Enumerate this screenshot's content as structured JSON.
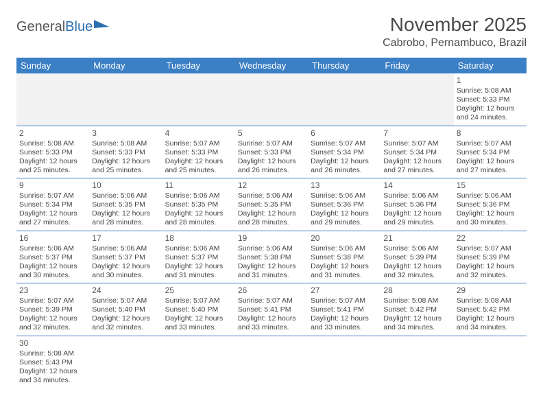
{
  "brand": {
    "part1": "General",
    "part2": "Blue"
  },
  "title": "November 2025",
  "location": "Cabrobo, Pernambuco, Brazil",
  "colors": {
    "header_bg": "#3b7fc4",
    "header_fg": "#ffffff",
    "border": "#3b7fc4",
    "text": "#444444",
    "empty_bg": "#f2f2f2"
  },
  "day_headers": [
    "Sunday",
    "Monday",
    "Tuesday",
    "Wednesday",
    "Thursday",
    "Friday",
    "Saturday"
  ],
  "weeks": [
    [
      null,
      null,
      null,
      null,
      null,
      null,
      {
        "n": "1",
        "sr": "Sunrise: 5:08 AM",
        "ss": "Sunset: 5:33 PM",
        "dl": "Daylight: 12 hours and 24 minutes."
      }
    ],
    [
      {
        "n": "2",
        "sr": "Sunrise: 5:08 AM",
        "ss": "Sunset: 5:33 PM",
        "dl": "Daylight: 12 hours and 25 minutes."
      },
      {
        "n": "3",
        "sr": "Sunrise: 5:08 AM",
        "ss": "Sunset: 5:33 PM",
        "dl": "Daylight: 12 hours and 25 minutes."
      },
      {
        "n": "4",
        "sr": "Sunrise: 5:07 AM",
        "ss": "Sunset: 5:33 PM",
        "dl": "Daylight: 12 hours and 25 minutes."
      },
      {
        "n": "5",
        "sr": "Sunrise: 5:07 AM",
        "ss": "Sunset: 5:33 PM",
        "dl": "Daylight: 12 hours and 26 minutes."
      },
      {
        "n": "6",
        "sr": "Sunrise: 5:07 AM",
        "ss": "Sunset: 5:34 PM",
        "dl": "Daylight: 12 hours and 26 minutes."
      },
      {
        "n": "7",
        "sr": "Sunrise: 5:07 AM",
        "ss": "Sunset: 5:34 PM",
        "dl": "Daylight: 12 hours and 27 minutes."
      },
      {
        "n": "8",
        "sr": "Sunrise: 5:07 AM",
        "ss": "Sunset: 5:34 PM",
        "dl": "Daylight: 12 hours and 27 minutes."
      }
    ],
    [
      {
        "n": "9",
        "sr": "Sunrise: 5:07 AM",
        "ss": "Sunset: 5:34 PM",
        "dl": "Daylight: 12 hours and 27 minutes."
      },
      {
        "n": "10",
        "sr": "Sunrise: 5:06 AM",
        "ss": "Sunset: 5:35 PM",
        "dl": "Daylight: 12 hours and 28 minutes."
      },
      {
        "n": "11",
        "sr": "Sunrise: 5:06 AM",
        "ss": "Sunset: 5:35 PM",
        "dl": "Daylight: 12 hours and 28 minutes."
      },
      {
        "n": "12",
        "sr": "Sunrise: 5:06 AM",
        "ss": "Sunset: 5:35 PM",
        "dl": "Daylight: 12 hours and 28 minutes."
      },
      {
        "n": "13",
        "sr": "Sunrise: 5:06 AM",
        "ss": "Sunset: 5:36 PM",
        "dl": "Daylight: 12 hours and 29 minutes."
      },
      {
        "n": "14",
        "sr": "Sunrise: 5:06 AM",
        "ss": "Sunset: 5:36 PM",
        "dl": "Daylight: 12 hours and 29 minutes."
      },
      {
        "n": "15",
        "sr": "Sunrise: 5:06 AM",
        "ss": "Sunset: 5:36 PM",
        "dl": "Daylight: 12 hours and 30 minutes."
      }
    ],
    [
      {
        "n": "16",
        "sr": "Sunrise: 5:06 AM",
        "ss": "Sunset: 5:37 PM",
        "dl": "Daylight: 12 hours and 30 minutes."
      },
      {
        "n": "17",
        "sr": "Sunrise: 5:06 AM",
        "ss": "Sunset: 5:37 PM",
        "dl": "Daylight: 12 hours and 30 minutes."
      },
      {
        "n": "18",
        "sr": "Sunrise: 5:06 AM",
        "ss": "Sunset: 5:37 PM",
        "dl": "Daylight: 12 hours and 31 minutes."
      },
      {
        "n": "19",
        "sr": "Sunrise: 5:06 AM",
        "ss": "Sunset: 5:38 PM",
        "dl": "Daylight: 12 hours and 31 minutes."
      },
      {
        "n": "20",
        "sr": "Sunrise: 5:06 AM",
        "ss": "Sunset: 5:38 PM",
        "dl": "Daylight: 12 hours and 31 minutes."
      },
      {
        "n": "21",
        "sr": "Sunrise: 5:06 AM",
        "ss": "Sunset: 5:39 PM",
        "dl": "Daylight: 12 hours and 32 minutes."
      },
      {
        "n": "22",
        "sr": "Sunrise: 5:07 AM",
        "ss": "Sunset: 5:39 PM",
        "dl": "Daylight: 12 hours and 32 minutes."
      }
    ],
    [
      {
        "n": "23",
        "sr": "Sunrise: 5:07 AM",
        "ss": "Sunset: 5:39 PM",
        "dl": "Daylight: 12 hours and 32 minutes."
      },
      {
        "n": "24",
        "sr": "Sunrise: 5:07 AM",
        "ss": "Sunset: 5:40 PM",
        "dl": "Daylight: 12 hours and 32 minutes."
      },
      {
        "n": "25",
        "sr": "Sunrise: 5:07 AM",
        "ss": "Sunset: 5:40 PM",
        "dl": "Daylight: 12 hours and 33 minutes."
      },
      {
        "n": "26",
        "sr": "Sunrise: 5:07 AM",
        "ss": "Sunset: 5:41 PM",
        "dl": "Daylight: 12 hours and 33 minutes."
      },
      {
        "n": "27",
        "sr": "Sunrise: 5:07 AM",
        "ss": "Sunset: 5:41 PM",
        "dl": "Daylight: 12 hours and 33 minutes."
      },
      {
        "n": "28",
        "sr": "Sunrise: 5:08 AM",
        "ss": "Sunset: 5:42 PM",
        "dl": "Daylight: 12 hours and 34 minutes."
      },
      {
        "n": "29",
        "sr": "Sunrise: 5:08 AM",
        "ss": "Sunset: 5:42 PM",
        "dl": "Daylight: 12 hours and 34 minutes."
      }
    ],
    [
      {
        "n": "30",
        "sr": "Sunrise: 5:08 AM",
        "ss": "Sunset: 5:43 PM",
        "dl": "Daylight: 12 hours and 34 minutes."
      },
      null,
      null,
      null,
      null,
      null,
      null
    ]
  ]
}
